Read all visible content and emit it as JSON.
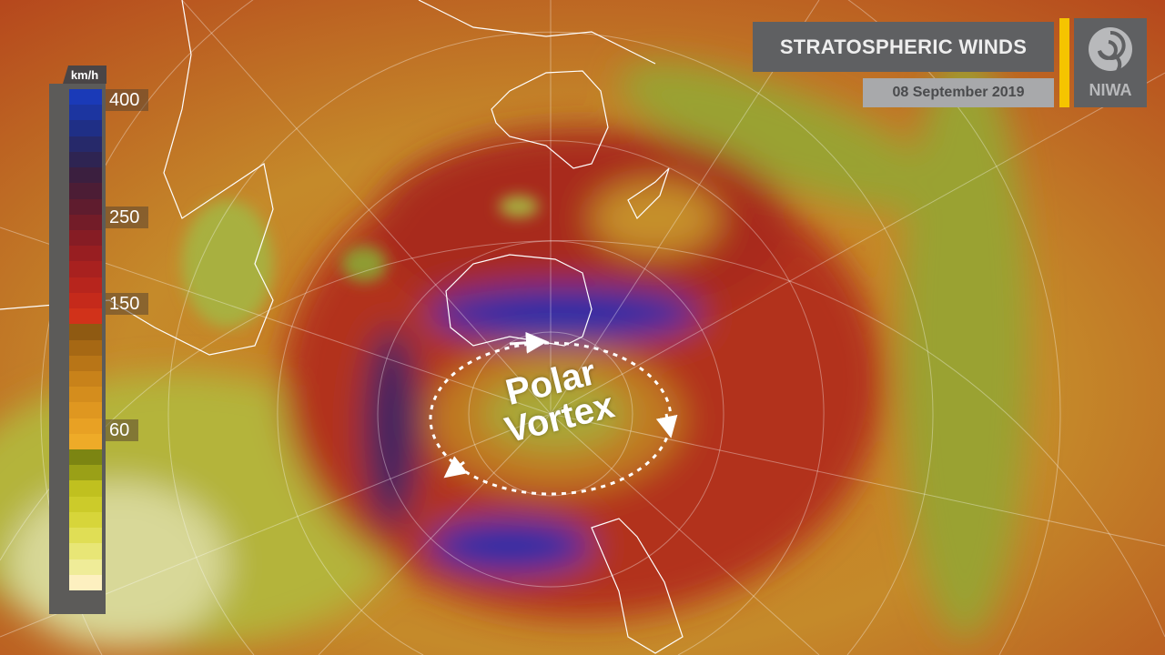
{
  "header": {
    "title": "STRATOSPHERIC WINDS",
    "date": "08 September 2019",
    "logo_text": "NIWA",
    "accent_color": "#f5c400"
  },
  "legend": {
    "unit": "km/h",
    "ticks": [
      {
        "label": "400"
      },
      {
        "label": "250"
      },
      {
        "label": "150"
      },
      {
        "label": "60"
      }
    ],
    "colors": [
      "#1a3ab8",
      "#1c35a0",
      "#1f2f86",
      "#26296a",
      "#2e2452",
      "#3b1f3f",
      "#4c1d35",
      "#5f1c2e",
      "#731c28",
      "#861c24",
      "#981e21",
      "#a8211f",
      "#b7251d",
      "#c52a1b",
      "#d1321a",
      "#8f5a12",
      "#a66814",
      "#b87517",
      "#c8821a",
      "#d48d1d",
      "#df9720",
      "#e8a124",
      "#eeab28",
      "#7c8512",
      "#9aa017",
      "#c0c01f",
      "#cccb2a",
      "#d7d53a",
      "#e0de55",
      "#e8e676",
      "#efec98",
      "#fdf0c0"
    ]
  },
  "annotation": {
    "line1": "Polar",
    "line2": "Vortex"
  }
}
